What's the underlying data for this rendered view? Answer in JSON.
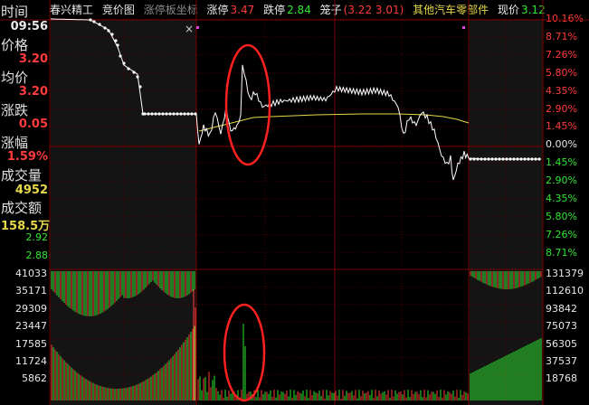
{
  "header": {
    "stock_name": "春兴精工",
    "auction_label": "竞价图",
    "limit_coord_label": "涨停板坐标",
    "limit_up_label": "涨停",
    "limit_up_value": "3.47",
    "limit_down_label": "跌停",
    "limit_down_value": "2.84",
    "bid_ask_label": "笼子",
    "bid_ask_value": "(3.22 3.01)",
    "sector": "其他汽车零部件",
    "current_label": "现价",
    "current_value": "3.12"
  },
  "left_panel": {
    "time_label": "时间",
    "time_value": "09:56",
    "price_label": "价格",
    "price_value": "3.20",
    "avg_label": "均价",
    "avg_value": "3.20",
    "change_label": "涨跌",
    "change_value": "0.05",
    "pct_label": "涨幅",
    "pct_value": "1.59%",
    "volume_label": "成交量",
    "volume_value": "4952",
    "amount_label": "成交额",
    "amount_value": "158.5万",
    "price_low_1": "2.92",
    "price_low_2": "2.88"
  },
  "right_price_scale": [
    "10.16%",
    "8.71%",
    "7.26%",
    "5.80%",
    "4.35%",
    "2.90%",
    "1.45%",
    "0.00%",
    "1.45%",
    "2.90%",
    "4.35%",
    "5.80%",
    "7.26%",
    "8.71%"
  ],
  "left_volume_scale": [
    "41033",
    "35171",
    "29309",
    "23447",
    "17585",
    "11724",
    "5862"
  ],
  "right_volume_scale": [
    "131379",
    "112610",
    "93842",
    "75073",
    "56305",
    "37537",
    "18768"
  ],
  "colors": {
    "up": "#ff3b3b",
    "down": "#2ee62e",
    "price_line": "#ffffff",
    "avg_line": "#e6d84a",
    "grid": "#4a0000",
    "annotation": "#ff2020"
  },
  "close_icon": "close-icon"
}
